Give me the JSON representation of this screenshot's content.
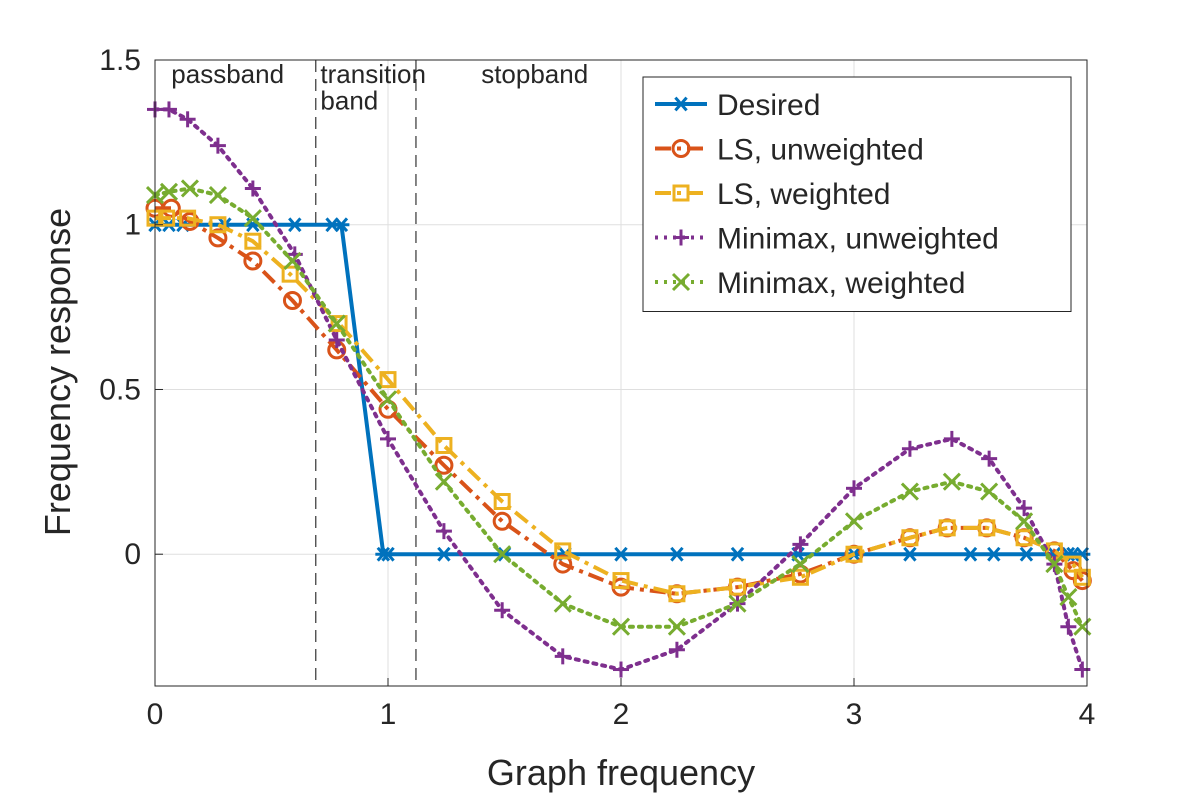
{
  "chart_data": {
    "type": "line",
    "title": "",
    "xlabel": "Graph frequency",
    "ylabel": "Frequency response",
    "xlim": [
      0,
      4
    ],
    "ylim": [
      -0.4,
      1.5
    ],
    "xticks": [
      0,
      1,
      2,
      3,
      4
    ],
    "yticks": [
      0,
      0.5,
      1,
      1.5
    ],
    "xtick_labels": [
      "0",
      "1",
      "2",
      "3",
      "4"
    ],
    "ytick_labels": [
      "0",
      "0.5",
      "1",
      "1.5"
    ],
    "grid": true,
    "legend_position": "top-right",
    "band_edges": [
      0.69,
      1.12
    ],
    "region_labels": [
      {
        "text": "passband",
        "x": 0.07,
        "y": 1.43
      },
      {
        "text": "transition",
        "x": 0.71,
        "y": 1.43
      },
      {
        "text": "band",
        "x": 0.71,
        "y": 1.35
      },
      {
        "text": "stopband",
        "x": 1.4,
        "y": 1.43
      }
    ],
    "series": [
      {
        "name": "Desired",
        "color": "#0072BD",
        "line_style": "solid",
        "marker": "asterisk",
        "x": [
          0,
          0.06,
          0.12,
          0.3,
          0.42,
          0.6,
          0.76,
          0.8,
          0.98,
          1.0,
          1.24,
          1.5,
          1.76,
          2.0,
          2.24,
          2.5,
          2.76,
          3.0,
          3.24,
          3.5,
          3.6,
          3.74,
          3.86,
          3.92,
          3.94,
          3.98
        ],
        "y": [
          1.0,
          1.0,
          1.0,
          1.0,
          1.0,
          1.0,
          1.0,
          1.0,
          0.0,
          0.0,
          0.0,
          0.0,
          0.0,
          0.0,
          0.0,
          0.0,
          0.0,
          0.0,
          0.0,
          0.0,
          0.0,
          0.0,
          0.0,
          0.0,
          0.0,
          0.0
        ]
      },
      {
        "name": "LS, unweighted",
        "color": "#D95319",
        "line_style": "dashdot",
        "marker": "circle",
        "x": [
          0,
          0.07,
          0.15,
          0.27,
          0.42,
          0.59,
          0.78,
          1.0,
          1.24,
          1.49,
          1.75,
          2.0,
          2.24,
          2.5,
          2.77,
          3.0,
          3.24,
          3.4,
          3.57,
          3.73,
          3.86,
          3.94,
          3.98
        ],
        "y": [
          1.05,
          1.05,
          1.01,
          0.96,
          0.89,
          0.77,
          0.62,
          0.44,
          0.27,
          0.1,
          -0.03,
          -0.1,
          -0.12,
          -0.1,
          -0.06,
          0.0,
          0.05,
          0.08,
          0.08,
          0.05,
          0.01,
          -0.05,
          -0.08
        ]
      },
      {
        "name": "LS, weighted",
        "color": "#EDB120",
        "line_style": "dashdot",
        "marker": "square",
        "x": [
          0,
          0.05,
          0.14,
          0.27,
          0.42,
          0.58,
          0.79,
          1.0,
          1.24,
          1.49,
          1.75,
          2.0,
          2.24,
          2.5,
          2.77,
          3.0,
          3.24,
          3.4,
          3.57,
          3.73,
          3.86,
          3.94,
          3.98
        ],
        "y": [
          1.02,
          1.02,
          1.02,
          1.0,
          0.95,
          0.85,
          0.7,
          0.53,
          0.33,
          0.16,
          0.01,
          -0.08,
          -0.12,
          -0.1,
          -0.07,
          0.0,
          0.05,
          0.08,
          0.08,
          0.05,
          0.01,
          -0.03,
          -0.07
        ]
      },
      {
        "name": "Minimax, unweighted",
        "color": "#7E2F8E",
        "line_style": "dotted",
        "marker": "plus",
        "x": [
          0,
          0.06,
          0.14,
          0.27,
          0.42,
          0.6,
          0.78,
          1.0,
          1.24,
          1.49,
          1.75,
          2.0,
          2.24,
          2.5,
          2.77,
          3.0,
          3.24,
          3.42,
          3.58,
          3.73,
          3.86,
          3.92,
          3.98
        ],
        "y": [
          1.35,
          1.35,
          1.32,
          1.24,
          1.11,
          0.91,
          0.65,
          0.35,
          0.07,
          -0.17,
          -0.31,
          -0.35,
          -0.29,
          -0.15,
          0.03,
          0.2,
          0.32,
          0.35,
          0.29,
          0.14,
          -0.03,
          -0.22,
          -0.35
        ]
      },
      {
        "name": "Minimax, weighted",
        "color": "#77AC30",
        "line_style": "dotted",
        "marker": "x",
        "x": [
          0,
          0.06,
          0.15,
          0.27,
          0.42,
          0.59,
          0.78,
          1.0,
          1.24,
          1.49,
          1.75,
          2.0,
          2.24,
          2.5,
          2.77,
          3.0,
          3.24,
          3.42,
          3.58,
          3.73,
          3.86,
          3.92,
          3.98
        ],
        "y": [
          1.09,
          1.1,
          1.11,
          1.09,
          1.02,
          0.89,
          0.7,
          0.47,
          0.22,
          0.0,
          -0.15,
          -0.22,
          -0.22,
          -0.15,
          -0.03,
          0.1,
          0.19,
          0.22,
          0.19,
          0.1,
          -0.03,
          -0.13,
          -0.22
        ]
      }
    ]
  }
}
